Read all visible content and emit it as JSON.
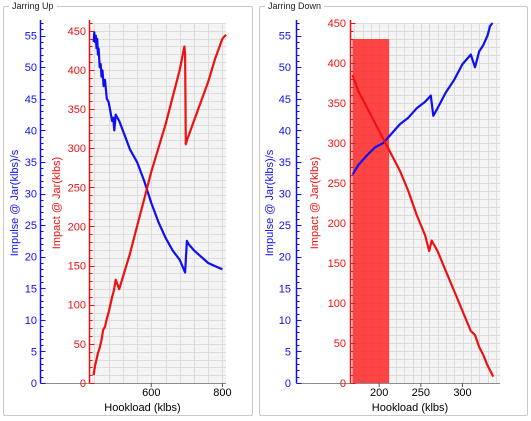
{
  "colors": {
    "impulse": "#1010ee",
    "impact": "#ee1111",
    "plot_bg": "#f4f4f4",
    "grid": "#dcdcdc",
    "highlight": "#ff2626"
  },
  "chart_data": [
    {
      "type": "line",
      "group_title": "Jarring Up",
      "xlabel": "Hookload (klbs)",
      "xlim": [
        425,
        810
      ],
      "xticks": [
        600,
        800
      ],
      "grid": true,
      "y_left": {
        "label": "Impulse @ Jar(klbs)/s",
        "lim": [
          0,
          57
        ],
        "ticks": [
          0,
          5,
          10,
          15,
          20,
          25,
          30,
          35,
          40,
          45,
          50,
          55
        ],
        "color": "#1010ee"
      },
      "y_right": {
        "label": "Impact @ Jar(klbs)",
        "lim": [
          0,
          460
        ],
        "ticks": [
          0,
          50,
          100,
          150,
          200,
          250,
          300,
          350,
          400,
          450
        ],
        "color": "#ee1111"
      },
      "series": [
        {
          "axis": "left",
          "color": "#1010ee",
          "x": [
            438,
            440,
            442,
            444,
            446,
            448,
            450,
            452,
            455,
            458,
            460,
            463,
            466,
            470,
            475,
            480,
            485,
            490,
            493,
            496,
            500,
            510,
            520,
            530,
            540,
            560,
            580,
            600,
            620,
            640,
            660,
            680,
            695,
            700,
            705,
            720,
            740,
            760,
            780,
            800
          ],
          "y": [
            54,
            55.5,
            54,
            55,
            53,
            54.5,
            52,
            53,
            50,
            50.5,
            48.5,
            49.5,
            47,
            48,
            45,
            44.5,
            43,
            41.5,
            42,
            40,
            42.5,
            41.5,
            40,
            38.5,
            37,
            35,
            32,
            28.5,
            25.5,
            23,
            21,
            19.5,
            17.5,
            22.5,
            22,
            21,
            20,
            19,
            18.5,
            18
          ]
        },
        {
          "axis": "right",
          "color": "#ee1111",
          "x": [
            438,
            442,
            446,
            450,
            455,
            460,
            465,
            470,
            475,
            480,
            485,
            490,
            495,
            500,
            510,
            520,
            540,
            560,
            580,
            600,
            620,
            640,
            660,
            680,
            693,
            695,
            697,
            700,
            720,
            740,
            760,
            780,
            800,
            810
          ],
          "y": [
            10,
            22,
            30,
            38,
            45,
            55,
            68,
            72,
            82,
            90,
            100,
            110,
            118,
            132,
            120,
            135,
            165,
            200,
            235,
            270,
            300,
            330,
            365,
            400,
            430,
            420,
            305,
            310,
            335,
            360,
            385,
            415,
            440,
            445
          ]
        }
      ]
    },
    {
      "type": "line",
      "group_title": "Jarring Down",
      "xlabel": "Hookload (klbs)",
      "xlim": [
        165,
        345
      ],
      "xticks": [
        200,
        250,
        300
      ],
      "grid": true,
      "y_left": {
        "label": "Impulse @ Jar(klbs)/s",
        "lim": [
          0,
          57
        ],
        "ticks": [
          0,
          5,
          10,
          15,
          20,
          25,
          30,
          35,
          40,
          45,
          50,
          55
        ],
        "color": "#1010ee"
      },
      "y_right": {
        "label": "Impact @ Jar(klbs)",
        "lim": [
          0,
          450
        ],
        "ticks": [
          0,
          50,
          100,
          150,
          200,
          250,
          300,
          350,
          400,
          450
        ],
        "color": "#ee1111"
      },
      "highlight_band": {
        "x_from": 168,
        "x_to": 212,
        "y_top": 430,
        "color": "#ff2626"
      },
      "series": [
        {
          "axis": "left",
          "color": "#1010ee",
          "x": [
            168,
            175,
            185,
            195,
            205,
            215,
            225,
            235,
            245,
            255,
            262,
            265,
            270,
            280,
            290,
            300,
            310,
            315,
            320,
            325,
            330,
            333,
            336
          ],
          "y": [
            33,
            34.5,
            36,
            37.3,
            38,
            39.5,
            41,
            42,
            43.5,
            44.5,
            45.5,
            42.3,
            43.5,
            46,
            48,
            50.5,
            52,
            50,
            52.5,
            53.5,
            55,
            56.5,
            57
          ]
        },
        {
          "axis": "right",
          "color": "#ee1111",
          "x": [
            168,
            175,
            185,
            195,
            205,
            215,
            225,
            235,
            245,
            255,
            260,
            263,
            270,
            280,
            290,
            300,
            310,
            315,
            320,
            325,
            330,
            337
          ],
          "y": [
            385,
            365,
            345,
            325,
            305,
            285,
            265,
            240,
            210,
            185,
            165,
            178,
            165,
            140,
            115,
            90,
            65,
            60,
            45,
            35,
            22,
            8
          ]
        }
      ]
    }
  ]
}
